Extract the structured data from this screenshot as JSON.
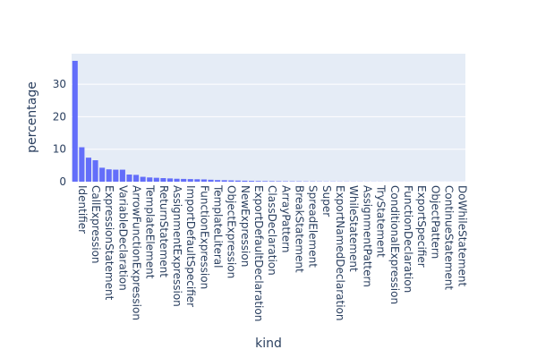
{
  "chart_data": {
    "type": "bar",
    "xlabel": "kind",
    "ylabel": "percentage",
    "categories": [
      "Identifier",
      null,
      "CallExpression",
      null,
      "ExpressionStatement",
      null,
      "VariableDeclaration",
      null,
      "ArrowFunctionExpression",
      null,
      "TemplateElement",
      null,
      "ReturnStatement",
      null,
      "AssignmentExpression",
      null,
      "ImportDefaultSpecifier",
      null,
      "FunctionExpression",
      null,
      "TemplateLiteral",
      null,
      "ObjectExpression",
      null,
      "NewExpression",
      null,
      "ExportDefaultDeclaration",
      null,
      "ClassDeclaration",
      null,
      "ArrayPattern",
      null,
      "BreakStatement",
      null,
      "SpreadElement",
      null,
      "Super",
      null,
      "ExportNamedDeclaration",
      null,
      "WhileStatement",
      null,
      "AssignmentPattern",
      null,
      "TryStatement",
      null,
      "ConditionalExpression",
      null,
      "FunctionDeclaration",
      null,
      "ExportSpecifier",
      null,
      "ObjectPattern",
      null,
      "ContinueStatement",
      null,
      "DoWhileStatement",
      null
    ],
    "values": [
      37.2,
      10.6,
      7.4,
      6.6,
      4.3,
      3.8,
      3.7,
      3.7,
      2.2,
      2.1,
      1.5,
      1.3,
      1.2,
      1.1,
      1.0,
      0.9,
      0.85,
      0.8,
      0.75,
      0.7,
      0.6,
      0.5,
      0.45,
      0.4,
      0.35,
      0.3,
      0.25,
      0.2,
      0.18,
      0.16,
      0.14,
      0.12,
      0.11,
      0.1,
      0.09,
      0.08,
      0.07,
      0.06,
      0.06,
      0.05,
      0.05,
      0.04,
      0.04,
      0.03,
      0.03,
      0.03,
      0.02,
      0.02,
      0.02,
      0.02,
      0.01,
      0.01,
      0.01,
      0.01,
      0.01,
      0.01,
      0.01,
      0.01
    ],
    "color": "#636efa",
    "ylim": [
      0,
      39.4
    ],
    "yticks": [
      0,
      10,
      20,
      30
    ],
    "grid": true
  }
}
